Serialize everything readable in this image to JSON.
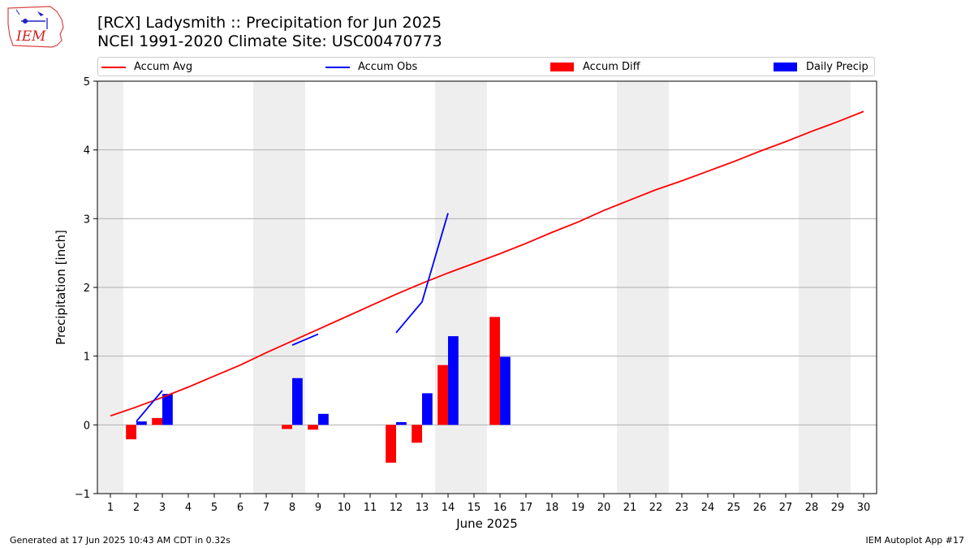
{
  "header": {
    "title_line1": "[RCX] Ladysmith :: Precipitation for Jun 2025",
    "title_line2": "NCEI 1991-2020 Climate Site: USC00470773",
    "logo_text": "IEM"
  },
  "footer": {
    "generated": "Generated at 17 Jun 2025 10:43 AM CDT in 0.32s",
    "app": "IEM Autoplot App #17"
  },
  "colors": {
    "avg": "#ff0000",
    "obs": "#0000ff",
    "diff": "#ff0000",
    "daily": "#0000ff",
    "weekend_shade": "#eeeeee",
    "grid": "#b0b0b0"
  },
  "chart_data": {
    "type": "bar",
    "title": "[RCX] Ladysmith :: Precipitation for Jun 2025",
    "subtitle": "NCEI 1991-2020 Climate Site: USC00470773",
    "xlabel": "June 2025",
    "ylabel": "Precipitation [inch]",
    "legend_position": "top",
    "grid": "horizontal",
    "xlim": [
      0.5,
      30.5
    ],
    "ylim": [
      -1.0,
      5.0
    ],
    "x_ticks": [
      1,
      2,
      3,
      4,
      5,
      6,
      7,
      8,
      9,
      10,
      11,
      12,
      13,
      14,
      15,
      16,
      17,
      18,
      19,
      20,
      21,
      22,
      23,
      24,
      25,
      26,
      27,
      28,
      29,
      30
    ],
    "y_ticks": [
      -1,
      0,
      1,
      2,
      3,
      4,
      5
    ],
    "weekend_shading": [
      [
        0.5,
        1.5
      ],
      [
        6.5,
        8.5
      ],
      [
        13.5,
        15.5
      ],
      [
        20.5,
        22.5
      ],
      [
        27.5,
        29.5
      ]
    ],
    "series": [
      {
        "name": "Accum Avg",
        "kind": "line",
        "color": "#ff0000",
        "x": [
          1,
          2,
          3,
          4,
          5,
          6,
          7,
          8,
          9,
          10,
          11,
          12,
          13,
          14,
          15,
          16,
          17,
          18,
          19,
          20,
          21,
          22,
          23,
          24,
          25,
          26,
          27,
          28,
          29,
          30
        ],
        "values": [
          0.13,
          0.26,
          0.4,
          0.55,
          0.71,
          0.87,
          1.05,
          1.22,
          1.39,
          1.56,
          1.73,
          1.9,
          2.06,
          2.21,
          2.35,
          2.49,
          2.64,
          2.8,
          2.95,
          3.12,
          3.27,
          3.42,
          3.55,
          3.69,
          3.83,
          3.98,
          4.12,
          4.27,
          4.41,
          4.56
        ]
      },
      {
        "name": "Accum Obs",
        "kind": "line",
        "color": "#0000ff",
        "segments": [
          {
            "x": [
              2,
              3
            ],
            "values": [
              0.05,
              0.5
            ]
          },
          {
            "x": [
              8,
              9
            ],
            "values": [
              1.16,
              1.32
            ]
          },
          {
            "x": [
              12,
              13,
              14
            ],
            "values": [
              1.34,
              1.79,
              3.08
            ]
          }
        ]
      },
      {
        "name": "Accum Diff",
        "kind": "bar",
        "color": "#ff0000",
        "x": [
          2,
          3,
          8,
          9,
          12,
          13,
          14,
          16
        ],
        "values": [
          -0.21,
          0.1,
          -0.06,
          -0.07,
          -0.55,
          -0.26,
          0.87,
          1.57
        ]
      },
      {
        "name": "Daily Precip",
        "kind": "bar",
        "color": "#0000ff",
        "x": [
          2,
          3,
          8,
          9,
          12,
          13,
          14,
          16
        ],
        "values": [
          0.05,
          0.45,
          0.68,
          0.16,
          0.04,
          0.46,
          1.29,
          0.99
        ]
      }
    ]
  }
}
